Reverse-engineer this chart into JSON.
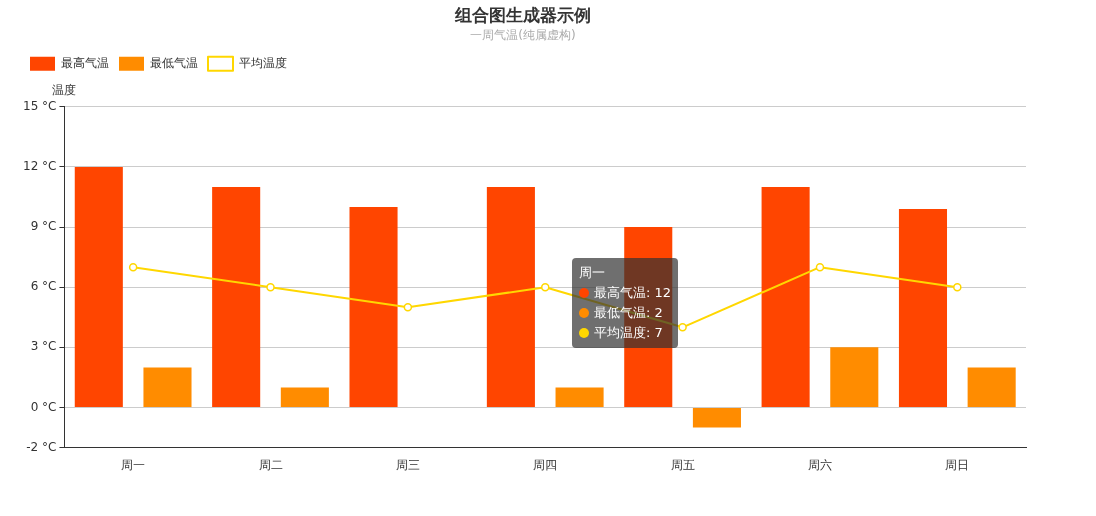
{
  "chart_data": {
    "type": "bar",
    "title": "组合图生成器示例",
    "subtitle": "一周气温(纯属虚构)",
    "ylabel": "温度",
    "categories": [
      "周一",
      "周二",
      "周三",
      "周四",
      "周五",
      "周六",
      "周日"
    ],
    "series": [
      {
        "name": "最高气温",
        "color": "#ff4500",
        "values": [
          12,
          11,
          10,
          11,
          9,
          11,
          9.9
        ]
      },
      {
        "name": "最低气温",
        "color": "#ff8c00",
        "values": [
          2,
          1,
          0,
          1,
          -1,
          3,
          2
        ]
      },
      {
        "name": "平均温度",
        "type": "line",
        "color": "#ffd700",
        "values": [
          7,
          6,
          5,
          6,
          4,
          7,
          6
        ]
      }
    ],
    "ylim": [
      -2,
      15
    ],
    "yticks": [
      {
        "value": -2,
        "label": "-2 °C"
      },
      {
        "value": 0,
        "label": "0 °C"
      },
      {
        "value": 3,
        "label": "3 °C"
      },
      {
        "value": 6,
        "label": "6 °C"
      },
      {
        "value": 9,
        "label": "9 °C"
      },
      {
        "value": 12,
        "label": "12 °C"
      },
      {
        "value": 15,
        "label": "15 °C"
      }
    ],
    "grid": "y",
    "legend": "top left",
    "marker": "circle",
    "annotations": [
      "周一",
      "最高气温: 12",
      "最低气温: 2",
      "平均温度: 7"
    ]
  }
}
